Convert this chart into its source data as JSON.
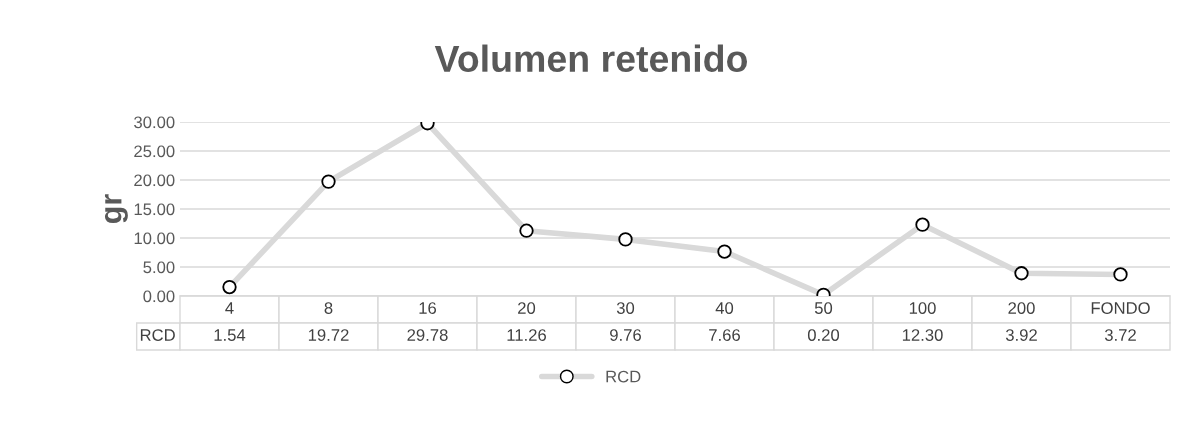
{
  "chart_data": {
    "type": "line",
    "title": "Volumen retenido",
    "ylabel": "gr",
    "categories": [
      "4",
      "8",
      "16",
      "20",
      "30",
      "40",
      "50",
      "100",
      "200",
      "FONDO"
    ],
    "series": [
      {
        "name": "RCD",
        "color": "#d9d9d9",
        "values": [
          1.54,
          19.72,
          29.78,
          11.26,
          9.76,
          7.66,
          0.2,
          12.3,
          3.92,
          3.72
        ],
        "value_labels": [
          "1.54",
          "19.72",
          "29.78",
          "11.26",
          "9.76",
          "7.66",
          "0.20",
          "12.30",
          "3.92",
          "3.72"
        ]
      }
    ],
    "ylim": [
      0,
      30
    ],
    "yticks": [
      {
        "value": 0,
        "label": "0.00"
      },
      {
        "value": 5,
        "label": "5.00"
      },
      {
        "value": 10,
        "label": "10.00"
      },
      {
        "value": 15,
        "label": "15.00"
      },
      {
        "value": 20,
        "label": "20.00"
      },
      {
        "value": 25,
        "label": "25.00"
      },
      {
        "value": 30,
        "label": "30.00"
      }
    ],
    "grid": "y",
    "legend": "bottom",
    "marker": "circle",
    "line_style": "solid"
  }
}
